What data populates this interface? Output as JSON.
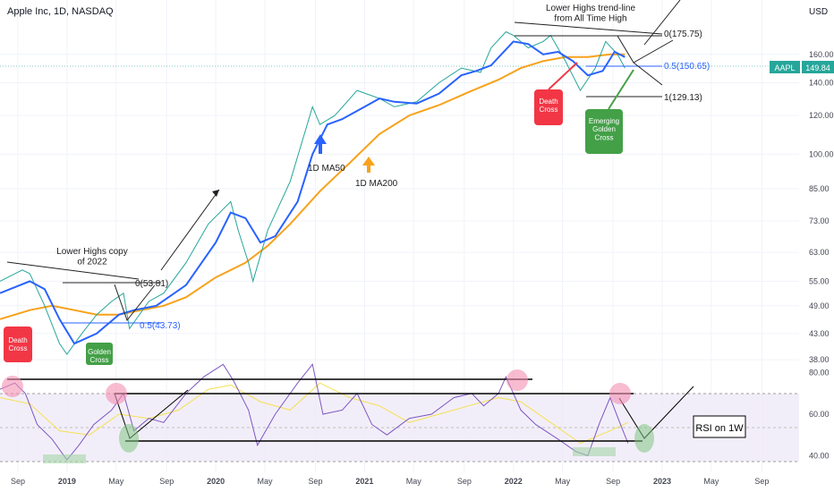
{
  "header": {
    "title": "Apple Inc, 1D, NASDAQ",
    "currency": "USD"
  },
  "ticker": {
    "symbol": "AAPL",
    "last": "149.84",
    "tag_color": "#26a69a"
  },
  "colors": {
    "ma50": "#2962ff",
    "ma200": "#f7a21b",
    "price_up": "#26a69a",
    "price_down": "#ef5350",
    "death": "#f23645",
    "golden": "#43a047",
    "rsi": "#7e57c2",
    "rsi_ma": "#f5e050"
  },
  "chart_data": [
    {
      "type": "line",
      "title": "Apple Inc, 1D, NASDAQ",
      "scale": "log",
      "ylim": [
        36,
        190
      ],
      "xlim": [
        2018.55,
        2023.92
      ],
      "y_ticks": [
        38,
        43,
        49,
        55,
        63,
        73,
        85,
        100,
        120,
        140,
        160
      ],
      "x_ticks": [
        {
          "t": 2018.67,
          "label": "Sep"
        },
        {
          "t": 2019.0,
          "label": "2019"
        },
        {
          "t": 2019.33,
          "label": "May"
        },
        {
          "t": 2019.67,
          "label": "Sep"
        },
        {
          "t": 2020.0,
          "label": "2020"
        },
        {
          "t": 2020.33,
          "label": "May"
        },
        {
          "t": 2020.67,
          "label": "Sep"
        },
        {
          "t": 2021.0,
          "label": "2021"
        },
        {
          "t": 2021.33,
          "label": "May"
        },
        {
          "t": 2021.67,
          "label": "Sep"
        },
        {
          "t": 2022.0,
          "label": "2022"
        },
        {
          "t": 2022.33,
          "label": "May"
        },
        {
          "t": 2022.67,
          "label": "Sep"
        },
        {
          "t": 2023.0,
          "label": "2023"
        },
        {
          "t": 2023.33,
          "label": "May"
        },
        {
          "t": 2023.67,
          "label": "Sep"
        }
      ],
      "series": [
        {
          "name": "Price",
          "t": [
            2018.55,
            2018.7,
            2018.75,
            2018.85,
            2018.95,
            2019.0,
            2019.1,
            2019.2,
            2019.3,
            2019.38,
            2019.42,
            2019.55,
            2019.65,
            2019.8,
            2019.95,
            2020.1,
            2020.15,
            2020.22,
            2020.25,
            2020.35,
            2020.5,
            2020.65,
            2020.7,
            2020.8,
            2020.95,
            2021.1,
            2021.2,
            2021.35,
            2021.5,
            2021.65,
            2021.78,
            2021.85,
            2021.95,
            2022.0,
            2022.1,
            2022.2,
            2022.25,
            2022.35,
            2022.45,
            2022.55,
            2022.62,
            2022.7,
            2022.75
          ],
          "values": [
            55,
            58,
            57,
            49,
            41,
            39,
            43,
            47,
            50,
            52,
            44,
            50,
            52,
            60,
            72,
            80,
            70,
            60,
            55,
            70,
            88,
            125,
            115,
            120,
            135,
            130,
            125,
            128,
            140,
            150,
            147,
            165,
            178,
            175,
            165,
            170,
            175,
            155,
            135,
            150,
            170,
            160,
            150
          ]
        },
        {
          "name": "1D MA50",
          "t": [
            2018.55,
            2018.75,
            2018.85,
            2018.95,
            2019.05,
            2019.2,
            2019.35,
            2019.45,
            2019.6,
            2019.8,
            2020.0,
            2020.1,
            2020.2,
            2020.3,
            2020.4,
            2020.55,
            2020.65,
            2020.75,
            2020.85,
            2021.0,
            2021.1,
            2021.2,
            2021.35,
            2021.5,
            2021.65,
            2021.75,
            2021.85,
            2022.0,
            2022.1,
            2022.2,
            2022.3,
            2022.4,
            2022.5,
            2022.6,
            2022.68,
            2022.75
          ],
          "values": [
            52,
            55,
            53,
            46,
            41,
            43,
            47,
            48,
            49,
            54,
            66,
            76,
            74,
            66,
            68,
            80,
            100,
            115,
            118,
            125,
            130,
            128,
            127,
            133,
            145,
            148,
            152,
            170,
            168,
            160,
            162,
            155,
            145,
            148,
            162,
            158
          ]
        },
        {
          "name": "1D MA200",
          "t": [
            2018.55,
            2018.75,
            2018.9,
            2019.05,
            2019.2,
            2019.35,
            2019.5,
            2019.65,
            2019.8,
            2020.0,
            2020.2,
            2020.35,
            2020.5,
            2020.7,
            2020.9,
            2021.1,
            2021.3,
            2021.5,
            2021.7,
            2021.9,
            2022.05,
            2022.2,
            2022.35,
            2022.5,
            2022.65,
            2022.75
          ],
          "values": [
            46,
            48,
            49,
            48,
            47,
            47,
            48,
            49,
            51,
            56,
            60,
            65,
            72,
            84,
            96,
            110,
            120,
            126,
            134,
            142,
            150,
            155,
            158,
            158,
            160,
            160
          ]
        }
      ],
      "annotations": [
        "Lower Highs copy of 2022",
        "Lower Highs trend-line from All Time High",
        "Death Cross",
        "Golden Cross",
        "Emerging Golden Cross",
        "1D MA50",
        "1D MA200"
      ]
    },
    {
      "type": "line",
      "title": "RSI on 1W",
      "ylim": [
        32,
        85
      ],
      "y_ticks": [
        40.0,
        60.0,
        80.0
      ],
      "series": [
        {
          "name": "RSI",
          "t": [
            2018.55,
            2018.65,
            2018.72,
            2018.8,
            2018.9,
            2019.0,
            2019.08,
            2019.18,
            2019.3,
            2019.38,
            2019.45,
            2019.55,
            2019.65,
            2019.8,
            2019.92,
            2020.05,
            2020.12,
            2020.22,
            2020.28,
            2020.4,
            2020.55,
            2020.65,
            2020.72,
            2020.85,
            2020.95,
            2021.05,
            2021.15,
            2021.3,
            2021.45,
            2021.6,
            2021.72,
            2021.8,
            2021.9,
            2021.95,
            2022.05,
            2022.15,
            2022.3,
            2022.42,
            2022.5,
            2022.58,
            2022.65,
            2022.72,
            2022.77
          ],
          "values": [
            72,
            75,
            70,
            55,
            48,
            38,
            45,
            55,
            62,
            70,
            52,
            58,
            56,
            70,
            78,
            84,
            76,
            62,
            45,
            60,
            75,
            84,
            60,
            62,
            70,
            55,
            50,
            58,
            60,
            68,
            70,
            64,
            70,
            78,
            62,
            55,
            48,
            42,
            40,
            56,
            68,
            55,
            46
          ]
        },
        {
          "name": "RSI MA",
          "t": [
            2018.55,
            2018.75,
            2018.95,
            2019.15,
            2019.35,
            2019.55,
            2019.75,
            2019.95,
            2020.1,
            2020.3,
            2020.5,
            2020.7,
            2020.9,
            2021.1,
            2021.3,
            2021.5,
            2021.7,
            2021.9,
            2022.05,
            2022.25,
            2022.45,
            2022.65,
            2022.77
          ],
          "values": [
            68,
            65,
            52,
            50,
            60,
            58,
            62,
            72,
            74,
            66,
            62,
            75,
            68,
            64,
            56,
            60,
            64,
            68,
            66,
            56,
            46,
            52,
            56
          ]
        }
      ]
    }
  ],
  "labels": {
    "lower_highs_2022": "Lower Highs copy\nof 2022",
    "lower_highs_ath": "Lower Highs trend-line\nfrom All Time High",
    "death_cross": "Death\nCross",
    "golden_cross": "Golden\nCross",
    "emerging_golden_cross": "Emerging\nGolden\nCross",
    "ma50": "1D MA50",
    "ma200": "1D MA200",
    "rsi_on_1w": "RSI on 1W",
    "fib_left_0": "0(53.81)",
    "fib_left_05": "0.5(43.73)",
    "fib_right_0": "0(175.75)",
    "fib_right_05": "0.5(150.65)",
    "fib_right_1": "1(129.13)"
  }
}
